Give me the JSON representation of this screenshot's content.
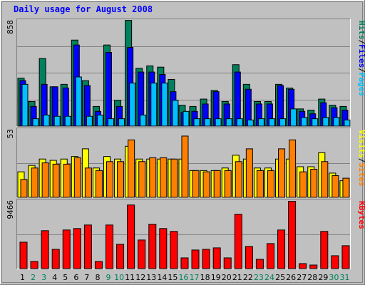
{
  "window": {
    "title": "Daily usage for August 2008"
  },
  "colors": {
    "background": "#c0c0c0",
    "title": "#0000ff",
    "hits": "#00805c",
    "files": "#0000ff",
    "pages": "#00c0ff",
    "visits": "#ffff00",
    "sites": "#ff8000",
    "kbytes": "#ff0000",
    "weekday_label": "#000000",
    "weekend_label": "#00805c"
  },
  "chart_data": [
    {
      "type": "bar",
      "panel": "hits-files-pages",
      "max_label": "858",
      "ylim": [
        0,
        858
      ],
      "legend": [
        "Pages",
        "/",
        "Files",
        "/",
        "Hits"
      ],
      "categories": [
        "1",
        "2",
        "3",
        "4",
        "5",
        "6",
        "7",
        "8",
        "9",
        "10",
        "11",
        "12",
        "13",
        "14",
        "15",
        "16",
        "17",
        "18",
        "19",
        "20",
        "21",
        "22",
        "23",
        "24",
        "25",
        "26",
        "27",
        "28",
        "29",
        "30",
        "31"
      ],
      "weekend": [
        false,
        true,
        true,
        false,
        false,
        false,
        false,
        false,
        true,
        true,
        false,
        false,
        false,
        false,
        false,
        true,
        true,
        false,
        false,
        false,
        false,
        false,
        true,
        true,
        false,
        false,
        false,
        false,
        false,
        true,
        true
      ],
      "series": [
        {
          "name": "Hits",
          "values": [
            390,
            200,
            550,
            320,
            340,
            700,
            370,
            160,
            660,
            210,
            860,
            470,
            490,
            480,
            380,
            170,
            160,
            220,
            290,
            200,
            500,
            340,
            200,
            200,
            340,
            310,
            140,
            130,
            220,
            170,
            160
          ]
        },
        {
          "name": "Files",
          "values": [
            370,
            160,
            340,
            320,
            310,
            660,
            330,
            120,
            600,
            160,
            640,
            440,
            440,
            420,
            280,
            110,
            120,
            180,
            280,
            180,
            440,
            300,
            180,
            180,
            330,
            300,
            120,
            100,
            190,
            150,
            130
          ]
        },
        {
          "name": "Pages",
          "values": [
            340,
            60,
            90,
            80,
            80,
            400,
            80,
            90,
            60,
            60,
            350,
            90,
            350,
            350,
            210,
            120,
            60,
            60,
            60,
            60,
            60,
            50,
            60,
            60,
            60,
            140,
            70,
            60,
            70,
            70,
            50
          ]
        }
      ]
    },
    {
      "type": "bar",
      "panel": "visits-sites",
      "max_label": "53",
      "ylim": [
        0,
        53
      ],
      "legend": [
        "Sites",
        "/",
        "Visits"
      ],
      "categories": [
        "1",
        "2",
        "3",
        "4",
        "5",
        "6",
        "7",
        "8",
        "9",
        "10",
        "11",
        "12",
        "13",
        "14",
        "15",
        "16",
        "17",
        "18",
        "19",
        "20",
        "21",
        "22",
        "23",
        "24",
        "25",
        "26",
        "27",
        "28",
        "29",
        "30",
        "31"
      ],
      "series": [
        {
          "name": "Visits",
          "values": [
            20,
            25,
            30,
            29,
            30,
            32,
            38,
            23,
            32,
            30,
            40,
            30,
            30,
            30,
            30,
            30,
            21,
            21,
            21,
            23,
            33,
            30,
            23,
            23,
            30,
            30,
            24,
            24,
            35,
            19,
            13
          ]
        },
        {
          "name": "Sites",
          "values": [
            14,
            23,
            27,
            26,
            26,
            31,
            23,
            21,
            28,
            28,
            45,
            28,
            31,
            31,
            30,
            48,
            21,
            20,
            21,
            21,
            28,
            38,
            21,
            21,
            38,
            45,
            20,
            22,
            28,
            17,
            15
          ]
        }
      ]
    },
    {
      "type": "bar",
      "panel": "kbytes",
      "max_label": "9466",
      "ylim": [
        0,
        9466
      ],
      "legend": [
        "KBytes"
      ],
      "categories": [
        "1",
        "2",
        "3",
        "4",
        "5",
        "6",
        "7",
        "8",
        "9",
        "10",
        "11",
        "12",
        "13",
        "14",
        "15",
        "16",
        "17",
        "18",
        "19",
        "20",
        "21",
        "22",
        "23",
        "24",
        "25",
        "26",
        "27",
        "28",
        "29",
        "30",
        "31"
      ],
      "series": [
        {
          "name": "KBytes",
          "values": [
            3700,
            1000,
            5300,
            2700,
            5400,
            5600,
            6100,
            1000,
            6100,
            3400,
            8900,
            4000,
            6200,
            5600,
            5200,
            1500,
            2600,
            2700,
            2900,
            1500,
            7600,
            3100,
            1300,
            3500,
            5400,
            9400,
            700,
            500,
            5200,
            1800,
            3200
          ]
        }
      ]
    }
  ]
}
